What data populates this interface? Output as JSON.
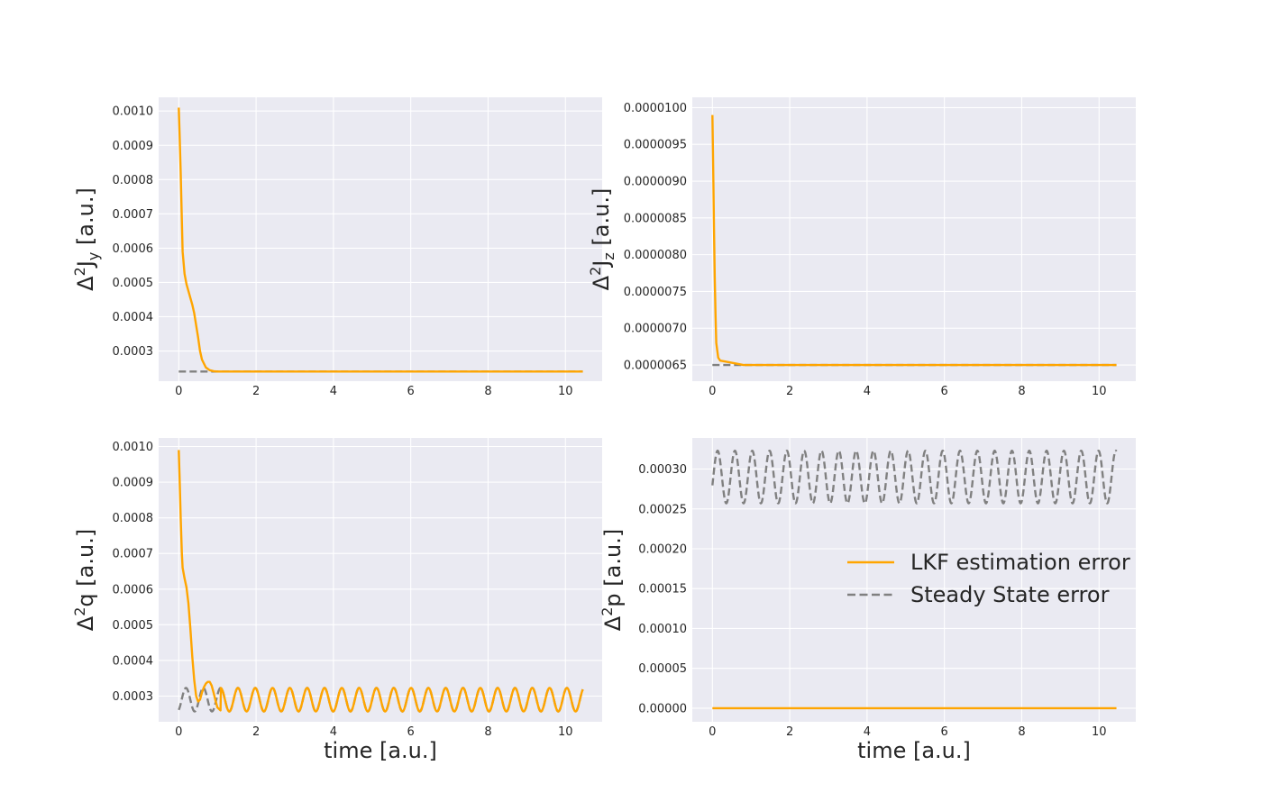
{
  "chart_data": [
    {
      "type": "line",
      "id": "top-left",
      "ylabel": "Δ²J_y [a.u.]",
      "xlabel": "",
      "xlim": [
        -0.52,
        10.95
      ],
      "ylim": [
        0.000212,
        0.00104
      ],
      "xticks": [
        0,
        2,
        4,
        6,
        8,
        10
      ],
      "yticks": [
        0.0003,
        0.0004,
        0.0005,
        0.0006,
        0.0007,
        0.0008,
        0.0009,
        0.001
      ],
      "ytick_labels": [
        "0.0003",
        "0.0004",
        "0.0005",
        "0.0006",
        "0.0007",
        "0.0008",
        "0.0009",
        "0.0010"
      ],
      "series": [
        {
          "name": "LKF estimation error",
          "color": "#FFA500",
          "dashed": false,
          "x": [
            0,
            0.02,
            0.05,
            0.08,
            0.1,
            0.15,
            0.2,
            0.25,
            0.3,
            0.35,
            0.4,
            0.5,
            0.55,
            0.6,
            0.7,
            0.8,
            0.9,
            1.0,
            10.45
          ],
          "y": [
            0.00101,
            0.00094,
            0.00082,
            0.00068,
            0.00059,
            0.000525,
            0.000495,
            0.000475,
            0.000455,
            0.000435,
            0.00041,
            0.00034,
            0.0003,
            0.000275,
            0.000252,
            0.000244,
            0.000241,
            0.00024,
            0.00024
          ]
        },
        {
          "name": "Steady State error",
          "color": "#808080",
          "dashed": true,
          "x": [
            0,
            10.45
          ],
          "y": [
            0.00024,
            0.00024
          ]
        }
      ]
    },
    {
      "type": "line",
      "id": "top-right",
      "ylabel": "Δ²J_z [a.u.]",
      "xlabel": "",
      "xlim": [
        -0.52,
        10.95
      ],
      "ylim": [
        6.28e-06,
        1.014e-05
      ],
      "xticks": [
        0,
        2,
        4,
        6,
        8,
        10
      ],
      "yticks": [
        6.5e-06,
        7e-06,
        7.5e-06,
        8e-06,
        8.5e-06,
        9e-06,
        9.5e-06,
        1e-05
      ],
      "ytick_labels": [
        "0.0000065",
        "0.0000070",
        "0.0000075",
        "0.0000080",
        "0.0000085",
        "0.0000090",
        "0.0000095",
        "0.0000100"
      ],
      "series": [
        {
          "name": "LKF estimation error",
          "color": "#FFA500",
          "dashed": false,
          "x": [
            0,
            0.02,
            0.04,
            0.06,
            0.08,
            0.1,
            0.15,
            0.2,
            0.3,
            0.5,
            0.7,
            0.8,
            1.0,
            10.45
          ],
          "y": [
            9.9e-06,
            9.2e-06,
            8.4e-06,
            7.7e-06,
            7.2e-06,
            6.8e-06,
            6.6e-06,
            6.56e-06,
            6.55e-06,
            6.53e-06,
            6.51e-06,
            6.5e-06,
            6.5e-06,
            6.5e-06
          ]
        },
        {
          "name": "Steady State error",
          "color": "#808080",
          "dashed": true,
          "x": [
            0,
            10.45
          ],
          "y": [
            6.5e-06,
            6.5e-06
          ]
        }
      ]
    },
    {
      "type": "line",
      "id": "bottom-left",
      "ylabel": "Δ²q [a.u.]",
      "xlabel": "time [a.u.]",
      "xlim": [
        -0.52,
        10.95
      ],
      "ylim": [
        0.000228,
        0.001024
      ],
      "xticks": [
        0,
        2,
        4,
        6,
        8,
        10
      ],
      "yticks": [
        0.0003,
        0.0004,
        0.0005,
        0.0006,
        0.0007,
        0.0008,
        0.0009,
        0.001
      ],
      "ytick_labels": [
        "0.0003",
        "0.0004",
        "0.0005",
        "0.0006",
        "0.0007",
        "0.0008",
        "0.0009",
        "0.0010"
      ],
      "series": [
        {
          "name": "LKF estimation error",
          "color": "#FFA500",
          "dashed": false,
          "transient_x": [
            0,
            0.02,
            0.05,
            0.08,
            0.1,
            0.15,
            0.2,
            0.25,
            0.3,
            0.35,
            0.4,
            0.45,
            0.5,
            0.55,
            0.6,
            0.65,
            0.7,
            0.75,
            0.8,
            0.85,
            0.9,
            0.95,
            1.0,
            1.08
          ],
          "transient_y": [
            0.00099,
            0.00092,
            0.0008,
            0.0007,
            0.00066,
            0.00063,
            0.000605,
            0.00056,
            0.00049,
            0.00041,
            0.000345,
            0.0003,
            0.000285,
            0.00029,
            0.00031,
            0.000325,
            0.000335,
            0.00034,
            0.00034,
            0.00033,
            0.00031,
            0.000288,
            0.000268,
            0.00026
          ],
          "osc_start": 1.08,
          "osc_end": 10.45,
          "osc_center": 0.00029,
          "osc_amplitude": 3.3e-05,
          "osc_period": 0.4478,
          "osc_phase": 0.635
        },
        {
          "name": "Steady State error",
          "color": "#808080",
          "dashed": true,
          "osc_start": 0,
          "osc_end": 10.45,
          "osc_center": 0.00029,
          "osc_amplitude": 3.3e-05,
          "osc_period": 0.4478,
          "osc_phase": 0.635
        }
      ]
    },
    {
      "type": "line",
      "id": "bottom-right",
      "ylabel": "Δ²p [a.u.]",
      "xlabel": "time [a.u.]",
      "xlim": [
        -0.52,
        10.95
      ],
      "ylim": [
        -1.7e-05,
        0.000339
      ],
      "xticks": [
        0,
        2,
        4,
        6,
        8,
        10
      ],
      "yticks": [
        0,
        5e-05,
        0.0001,
        0.00015,
        0.0002,
        0.00025,
        0.0003
      ],
      "ytick_labels": [
        "0.00000",
        "0.00005",
        "0.00010",
        "0.00015",
        "0.00020",
        "0.00025",
        "0.00030"
      ],
      "legend": "center-right",
      "series": [
        {
          "name": "LKF estimation error",
          "color": "#FFA500",
          "dashed": false,
          "x": [
            0,
            10.45
          ],
          "y": [
            0,
            0
          ]
        },
        {
          "name": "Steady State error",
          "color": "#808080",
          "dashed": true,
          "osc_start": 0,
          "osc_end": 10.45,
          "osc_center": 0.00029,
          "osc_amplitude": 3.3e-05,
          "osc_period": 0.4478,
          "osc_phase": 0.135
        }
      ]
    }
  ],
  "legend": {
    "items": [
      {
        "label": "LKF estimation error",
        "color": "#FFA500",
        "dashed": false
      },
      {
        "label": "Steady State error",
        "color": "#808080",
        "dashed": true
      }
    ]
  }
}
